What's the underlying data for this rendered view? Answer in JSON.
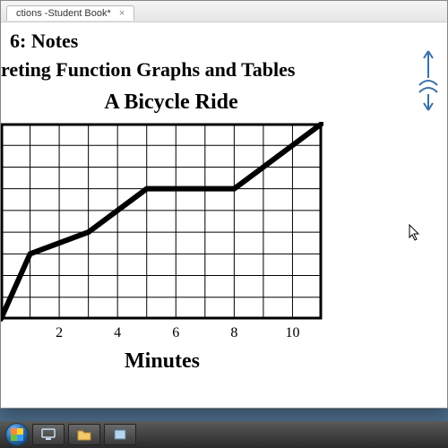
{
  "window": {
    "tab_label": "ctions -Student Book*"
  },
  "doc": {
    "line1": " 6: Notes",
    "line2": "reting Function Graphs and Tables",
    "chart_title": "A Bicycle Ride",
    "xlabel": "Minutes"
  },
  "chart": {
    "type": "line",
    "xlim": [
      0,
      11
    ],
    "ylim": [
      0,
      9
    ],
    "xtick_labels": [
      "2",
      "4",
      "6",
      "8",
      "10"
    ],
    "xtick_positions": [
      2,
      4,
      6,
      8,
      10
    ],
    "grid_x_step": 1,
    "grid_y_step": 1,
    "grid_color": "#000000",
    "grid_stroke": 1,
    "border_stroke": 3,
    "background_color": "#ffffff",
    "line_color": "#000000",
    "line_width": 6,
    "tick_fontsize": 16,
    "points": [
      {
        "x": 0,
        "y": 0
      },
      {
        "x": 1,
        "y": 3
      },
      {
        "x": 3,
        "y": 4
      },
      {
        "x": 5,
        "y": 6
      },
      {
        "x": 8,
        "y": 6
      },
      {
        "x": 11,
        "y": 9
      }
    ]
  },
  "taskbar": {
    "items": [
      "start",
      "app1",
      "app2",
      "app3"
    ]
  }
}
